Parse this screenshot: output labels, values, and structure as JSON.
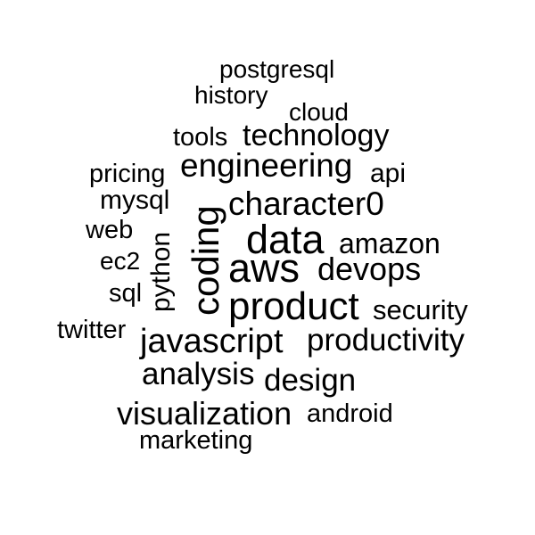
{
  "word_cloud": {
    "text_color": "#000000",
    "background": "#ffffff",
    "words": [
      {
        "key": "postgresql",
        "text": "postgresql"
      },
      {
        "key": "history",
        "text": "history"
      },
      {
        "key": "cloud",
        "text": "cloud"
      },
      {
        "key": "tools",
        "text": "tools"
      },
      {
        "key": "technology",
        "text": "technology"
      },
      {
        "key": "pricing",
        "text": "pricing"
      },
      {
        "key": "engineering",
        "text": "engineering"
      },
      {
        "key": "api",
        "text": "api"
      },
      {
        "key": "mysql",
        "text": "mysql"
      },
      {
        "key": "character0",
        "text": "character0"
      },
      {
        "key": "web",
        "text": "web"
      },
      {
        "key": "data",
        "text": "data"
      },
      {
        "key": "amazon",
        "text": "amazon"
      },
      {
        "key": "ec2",
        "text": "ec2"
      },
      {
        "key": "aws",
        "text": "aws"
      },
      {
        "key": "devops",
        "text": "devops"
      },
      {
        "key": "sql",
        "text": "sql"
      },
      {
        "key": "product",
        "text": "product"
      },
      {
        "key": "security",
        "text": "security"
      },
      {
        "key": "twitter",
        "text": "twitter"
      },
      {
        "key": "javascript",
        "text": "javascript"
      },
      {
        "key": "productivity",
        "text": "productivity"
      },
      {
        "key": "analysis",
        "text": "analysis"
      },
      {
        "key": "design",
        "text": "design"
      },
      {
        "key": "visualization",
        "text": "visualization"
      },
      {
        "key": "android",
        "text": "android"
      },
      {
        "key": "marketing",
        "text": "marketing"
      },
      {
        "key": "coding",
        "text": "coding"
      },
      {
        "key": "python",
        "text": "python"
      }
    ]
  }
}
